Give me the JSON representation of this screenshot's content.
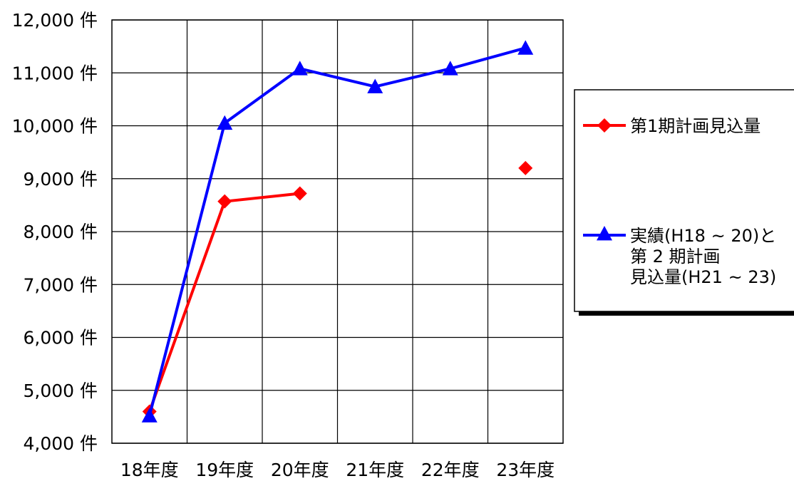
{
  "chart_data": {
    "type": "line",
    "categories": [
      "18年度",
      "19年度",
      "20年度",
      "21年度",
      "22年度",
      "23年度"
    ],
    "ylim": [
      4000,
      12000
    ],
    "y_ticks": [
      4000,
      5000,
      6000,
      7000,
      8000,
      9000,
      10000,
      11000,
      12000
    ],
    "y_tick_labels": [
      "4,000 件",
      "5,000 件",
      "6,000 件",
      "7,000 件",
      "8,000 件",
      "9,000 件",
      "10,000 件",
      "11,000 件",
      "12,000 件"
    ],
    "grid": true,
    "legend_position": "right",
    "series": [
      {
        "name": "第1期計画見込量",
        "color": "#ff0000",
        "marker": "diamond",
        "values": [
          4600,
          8570,
          8720,
          null,
          null,
          9200
        ]
      },
      {
        "name_lines": [
          "実績(H18 ~ 20)と",
          "第 2 期計画",
          "見込量(H21 ~ 23)"
        ],
        "color": "#0000ff",
        "marker": "triangle",
        "values": [
          4520,
          10050,
          11080,
          10740,
          11080,
          11470
        ]
      }
    ]
  }
}
